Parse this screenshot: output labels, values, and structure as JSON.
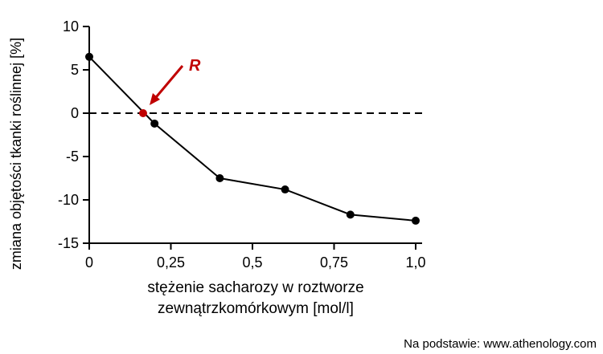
{
  "chart_data": {
    "type": "line",
    "ylabel": "zmiana objętości tkanki roślinnej [%]",
    "xlabel_lines": [
      "stężenie sacharozy w roztworze",
      "zewnątrzkomórkowym [mol/l]"
    ],
    "xlim": [
      0,
      1.0
    ],
    "ylim": [
      -15,
      10
    ],
    "xticks": [
      0,
      0.25,
      0.5,
      0.75,
      1.0
    ],
    "xtick_labels": [
      "0",
      "0,25",
      "0,5",
      "0,75",
      "1,0"
    ],
    "yticks": [
      10,
      5,
      0,
      -5,
      -10,
      -15
    ],
    "ytick_labels": [
      "10",
      "5",
      "0",
      "-5",
      "-10",
      "-15"
    ],
    "grid": false,
    "series": [
      {
        "x": [
          0,
          0.2,
          0.4,
          0.6,
          0.8,
          1.0
        ],
        "y": [
          6.5,
          -1.2,
          -7.5,
          -8.8,
          -11.7,
          -12.4
        ],
        "color": "#000000"
      }
    ],
    "reference_line": {
      "y": 0,
      "style": "dashed",
      "color": "#000000"
    },
    "annotation": {
      "label": "R",
      "x": 0.165,
      "y": 0,
      "color": "#c00000"
    }
  },
  "source": "Na podstawie: www.athenology.com"
}
